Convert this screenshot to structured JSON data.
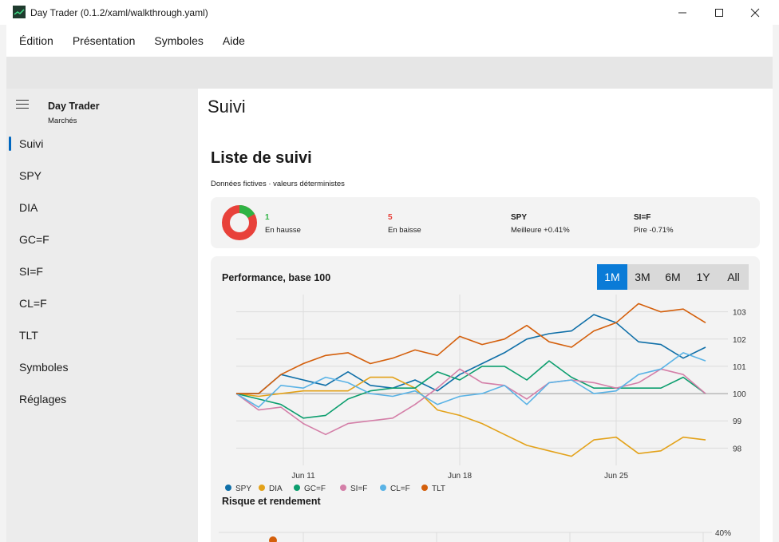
{
  "window": {
    "title": "Day Trader (0.1.2/xaml/walkthrough.yaml)",
    "icon": "stock-chart-icon"
  },
  "menu": [
    "Édition",
    "Présentation",
    "Symboles",
    "Aide"
  ],
  "sidebar": {
    "app_name": "Day Trader",
    "app_subtitle": "Marchés",
    "items": [
      "Suivi",
      "SPY",
      "DIA",
      "GC=F",
      "SI=F",
      "CL=F",
      "TLT",
      "Symboles",
      "Réglages"
    ],
    "selected_index": 0
  },
  "page": {
    "header": "Suivi",
    "section_title": "Liste de suivi",
    "section_subtitle": "Données fictives · valeurs déterministes"
  },
  "stats": {
    "up": {
      "value": "1",
      "label": "En hausse",
      "color": "#2fb344"
    },
    "down": {
      "value": "5",
      "label": "En baisse",
      "color": "#e8413a"
    },
    "best": {
      "value": "SPY",
      "label": "Meilleure +0.41%"
    },
    "worst": {
      "value": "SI=F",
      "label": "Pire -0.71%"
    }
  },
  "performance": {
    "title": "Performance, base 100",
    "ranges": [
      "1M",
      "3M",
      "6M",
      "1Y",
      "All"
    ],
    "active_range": "1M"
  },
  "risk": {
    "title": "Risque et rendement",
    "ytick": "40%"
  },
  "chart_data": {
    "type": "line",
    "title": "Performance, base 100",
    "x": [
      "Jun 8",
      "Jun 9",
      "Jun 10",
      "Jun 11",
      "Jun 12",
      "Jun 13",
      "Jun 14",
      "Jun 15",
      "Jun 16",
      "Jun 17",
      "Jun 18",
      "Jun 19",
      "Jun 20",
      "Jun 21",
      "Jun 22",
      "Jun 23",
      "Jun 24",
      "Jun 25",
      "Jun 26",
      "Jun 27",
      "Jun 28",
      "Jun 29",
      "Jun 30"
    ],
    "xticks": [
      "Jun 11",
      "Jun 18",
      "Jun 25"
    ],
    "yticks": [
      "98",
      "99",
      "100",
      "101",
      "102",
      "103"
    ],
    "ylim": [
      97.6,
      103.4
    ],
    "legend_position": "bottom-left",
    "grid": true,
    "series": [
      {
        "name": "SPY",
        "color": "#0f6fa8",
        "values": [
          100,
          100.0,
          100.7,
          100.5,
          100.3,
          100.8,
          100.3,
          100.2,
          100.5,
          100.1,
          100.7,
          101.1,
          101.5,
          102.0,
          102.2,
          102.3,
          102.9,
          102.6,
          101.9,
          101.8,
          101.3,
          101.7,
          null
        ]
      },
      {
        "name": "DIA",
        "color": "#e3a21a",
        "values": [
          100,
          99.9,
          100.0,
          100.1,
          100.1,
          100.1,
          100.6,
          100.6,
          100.2,
          99.4,
          99.2,
          98.9,
          98.5,
          98.1,
          97.9,
          97.7,
          98.3,
          98.4,
          97.8,
          97.9,
          98.4,
          98.3,
          null
        ]
      },
      {
        "name": "GC=F",
        "color": "#0c9e6e",
        "values": [
          100,
          99.8,
          99.6,
          99.1,
          99.2,
          99.8,
          100.1,
          100.2,
          100.2,
          100.8,
          100.5,
          101.0,
          101.0,
          100.5,
          101.2,
          100.6,
          100.2,
          100.2,
          100.2,
          100.2,
          100.6,
          100.0,
          null
        ]
      },
      {
        "name": "SI=F",
        "color": "#d47fa8",
        "values": [
          100,
          99.4,
          99.5,
          98.9,
          98.5,
          98.9,
          99.0,
          99.1,
          99.6,
          100.2,
          100.9,
          100.4,
          100.3,
          99.8,
          100.4,
          100.5,
          100.4,
          100.2,
          100.4,
          100.9,
          100.7,
          100.0,
          null
        ]
      },
      {
        "name": "CL=F",
        "color": "#5ab3e6",
        "values": [
          100,
          99.5,
          100.3,
          100.2,
          100.6,
          100.4,
          100.0,
          99.9,
          100.1,
          99.6,
          99.9,
          100.0,
          100.3,
          99.6,
          100.4,
          100.5,
          100.0,
          100.1,
          100.7,
          100.9,
          101.5,
          101.2,
          null
        ]
      },
      {
        "name": "TLT",
        "color": "#d45f0b",
        "values": [
          100,
          100.0,
          100.7,
          101.1,
          101.4,
          101.5,
          101.1,
          101.3,
          101.6,
          101.4,
          102.1,
          101.8,
          102.0,
          102.5,
          101.9,
          101.7,
          102.3,
          102.6,
          103.3,
          103.0,
          103.1,
          102.6,
          null
        ]
      }
    ]
  }
}
